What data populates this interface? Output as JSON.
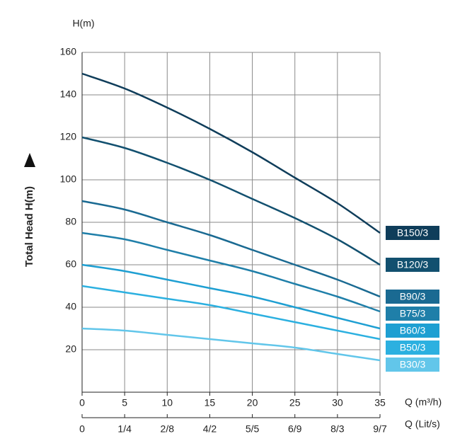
{
  "chart_data": {
    "type": "line",
    "y_unit_label": "H(m)",
    "y_label": "Total Head H(m)",
    "x_label": "Q (m³/h)",
    "x2_label": "Q (Lit/s)",
    "x": [
      0,
      5,
      10,
      15,
      20,
      25,
      30,
      35
    ],
    "xlim": [
      0,
      35
    ],
    "xticks": [
      0,
      5,
      10,
      15,
      20,
      25,
      30,
      35
    ],
    "x2ticks": [
      0,
      {
        "value": 5,
        "label": "1/4"
      },
      {
        "value": 10,
        "label": "2/8"
      },
      {
        "value": 15,
        "label": "4/2"
      },
      {
        "value": 20,
        "label": "5/5"
      },
      {
        "value": 25,
        "label": "6/9"
      },
      {
        "value": 30,
        "label": "8/3"
      },
      {
        "value": 35,
        "label": "9/7"
      }
    ],
    "ylim": [
      0,
      160
    ],
    "yticks": [
      20,
      40,
      60,
      80,
      100,
      120,
      140,
      160
    ],
    "grid": true,
    "series": [
      {
        "name": "B150/3",
        "color": "#0f3d5a",
        "values": [
          150,
          143,
          134,
          124,
          113,
          101,
          89,
          75
        ]
      },
      {
        "name": "B120/3",
        "color": "#12506f",
        "values": [
          120,
          115,
          108,
          100,
          91,
          82,
          72,
          60
        ]
      },
      {
        "name": "B90/3",
        "color": "#1a6a92",
        "values": [
          90,
          86,
          80,
          74,
          67,
          60,
          53,
          45
        ]
      },
      {
        "name": "B75/3",
        "color": "#1f7fa9",
        "values": [
          75,
          72,
          67,
          62,
          57,
          51,
          45,
          38
        ]
      },
      {
        "name": "B60/3",
        "color": "#1e9fd2",
        "values": [
          60,
          57,
          53,
          49,
          45,
          40,
          35,
          30
        ]
      },
      {
        "name": "B50/3",
        "color": "#2cb0e0",
        "values": [
          50,
          47,
          44,
          41,
          37,
          33,
          29,
          25
        ]
      },
      {
        "name": "B30/3",
        "color": "#62c6ea",
        "values": [
          30,
          29,
          27,
          25,
          23,
          21,
          18,
          15
        ]
      }
    ]
  }
}
